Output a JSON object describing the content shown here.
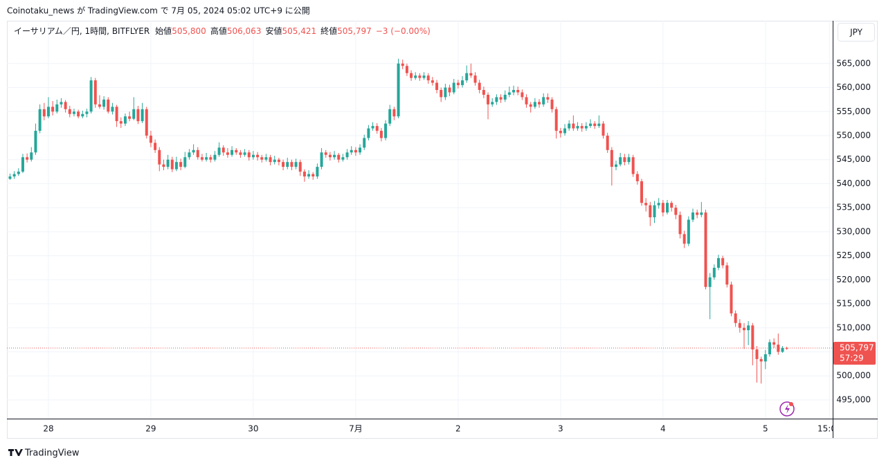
{
  "title": "Coinotaku_news が TradingView.com で 7月 05, 2024 05:02 UTC+9 に公開",
  "legend": {
    "symbol": "イーサリアム／円, 1時間, BITFLYER",
    "open_name": "始値",
    "open": "505,800",
    "high_name": "高値",
    "high": "506,063",
    "low_name": "安値",
    "low": "505,421",
    "close_name": "終値",
    "close": "505,797",
    "change": "−3 (−0.00%)"
  },
  "currency": "JPY",
  "price_label": "505,797",
  "countdown": "57:29",
  "footer": "TradingView",
  "chart_data": {
    "type": "candlestick",
    "up_color": "#26a69a",
    "down_color": "#ef5350",
    "grid": true,
    "xlim": [
      -0.4,
      192.6
    ],
    "ylim": [
      491100,
      573900
    ],
    "xticks": [
      {
        "value": 9,
        "label": "28"
      },
      {
        "value": 33,
        "label": "29"
      },
      {
        "value": 57,
        "label": "30"
      },
      {
        "value": 81,
        "label": "7月"
      },
      {
        "value": 105,
        "label": "2"
      },
      {
        "value": 129,
        "label": "3"
      },
      {
        "value": 153,
        "label": "4"
      },
      {
        "value": 177,
        "label": "5"
      },
      {
        "value": 192,
        "label": "15:00"
      }
    ],
    "yticks": [
      {
        "value": 495000,
        "label": "495,000"
      },
      {
        "value": 500000,
        "label": "500,000"
      },
      {
        "value": 505000,
        "label": "505,000"
      },
      {
        "value": 510000,
        "label": "510,000"
      },
      {
        "value": 515000,
        "label": "515,000"
      },
      {
        "value": 520000,
        "label": "520,000"
      },
      {
        "value": 525000,
        "label": "525,000"
      },
      {
        "value": 530000,
        "label": "530,000"
      },
      {
        "value": 535000,
        "label": "535,000"
      },
      {
        "value": 540000,
        "label": "540,000"
      },
      {
        "value": 545000,
        "label": "545,000"
      },
      {
        "value": 550000,
        "label": "550,000"
      },
      {
        "value": 555000,
        "label": "555,000"
      },
      {
        "value": 560000,
        "label": "560,000"
      },
      {
        "value": 565000,
        "label": "565,000"
      }
    ],
    "x": [
      0,
      1,
      2,
      3,
      4,
      5,
      6,
      7,
      8,
      9,
      10,
      11,
      12,
      13,
      14,
      15,
      16,
      17,
      18,
      19,
      20,
      21,
      22,
      23,
      24,
      25,
      26,
      27,
      28,
      29,
      30,
      31,
      32,
      33,
      34,
      35,
      36,
      37,
      38,
      39,
      40,
      41,
      42,
      43,
      44,
      45,
      46,
      47,
      48,
      49,
      50,
      51,
      52,
      53,
      54,
      55,
      56,
      57,
      58,
      59,
      60,
      61,
      62,
      63,
      64,
      65,
      66,
      67,
      68,
      69,
      70,
      71,
      72,
      73,
      74,
      75,
      76,
      77,
      78,
      79,
      80,
      81,
      82,
      83,
      84,
      85,
      86,
      87,
      88,
      89,
      90,
      91,
      92,
      93,
      94,
      95,
      96,
      97,
      98,
      99,
      100,
      101,
      102,
      103,
      104,
      105,
      106,
      107,
      108,
      109,
      110,
      111,
      112,
      113,
      114,
      115,
      116,
      117,
      118,
      119,
      120,
      121,
      122,
      123,
      124,
      125,
      126,
      127,
      128,
      129,
      130,
      131,
      132,
      133,
      134,
      135,
      136,
      137,
      138,
      139,
      140,
      141,
      142,
      143,
      144,
      145,
      146,
      147,
      148,
      149,
      150,
      151,
      152,
      153,
      154,
      155,
      156,
      157,
      158,
      159,
      160,
      161,
      162,
      163,
      164,
      165,
      166,
      167,
      168,
      169,
      170,
      171,
      172,
      173,
      174,
      175,
      176,
      177,
      178,
      179,
      180,
      181,
      182
    ],
    "ohlc": [
      [
        541000,
        542100,
        540800,
        541500
      ],
      [
        541500,
        542600,
        541000,
        542000
      ],
      [
        542000,
        543200,
        541600,
        542500
      ],
      [
        542500,
        546200,
        542200,
        545500
      ],
      [
        545500,
        546300,
        544400,
        545000
      ],
      [
        545000,
        547600,
        544600,
        546500
      ],
      [
        546500,
        552500,
        546000,
        551000
      ],
      [
        551000,
        556500,
        550500,
        555500
      ],
      [
        555500,
        556800,
        553200,
        554000
      ],
      [
        554000,
        558000,
        553600,
        556000
      ],
      [
        556000,
        557200,
        554200,
        555000
      ],
      [
        555000,
        557500,
        554600,
        556500
      ],
      [
        556500,
        557800,
        555800,
        557000
      ],
      [
        557000,
        557400,
        554800,
        555500
      ],
      [
        555500,
        556200,
        553800,
        554500
      ],
      [
        554500,
        555600,
        554000,
        555000
      ],
      [
        555000,
        555400,
        553600,
        554000
      ],
      [
        554000,
        555200,
        553600,
        554500
      ],
      [
        554500,
        555600,
        553800,
        555000
      ],
      [
        555000,
        562200,
        554600,
        561500
      ],
      [
        561500,
        562000,
        555800,
        556500
      ],
      [
        556500,
        558400,
        555600,
        556000
      ],
      [
        556000,
        558200,
        555400,
        557500
      ],
      [
        557500,
        558000,
        554600,
        555000
      ],
      [
        555000,
        556800,
        554400,
        556000
      ],
      [
        556000,
        556400,
        551800,
        553000
      ],
      [
        553000,
        553800,
        551600,
        552500
      ],
      [
        552500,
        554600,
        552000,
        554000
      ],
      [
        554000,
        555000,
        553000,
        553500
      ],
      [
        553500,
        558000,
        553200,
        555500
      ],
      [
        555500,
        556200,
        552400,
        553000
      ],
      [
        553000,
        556800,
        552600,
        555500
      ],
      [
        555500,
        556000,
        549400,
        550000
      ],
      [
        550000,
        551000,
        547600,
        548500
      ],
      [
        548500,
        549200,
        546400,
        547000
      ],
      [
        547000,
        547600,
        542600,
        544000
      ],
      [
        544000,
        545000,
        542800,
        543500
      ],
      [
        543500,
        546000,
        543000,
        545000
      ],
      [
        545000,
        545600,
        542400,
        543000
      ],
      [
        543000,
        545600,
        542600,
        544500
      ],
      [
        544500,
        545200,
        542800,
        543500
      ],
      [
        543500,
        546600,
        543200,
        545500
      ],
      [
        545500,
        547200,
        545000,
        546500
      ],
      [
        546500,
        548200,
        546000,
        547000
      ],
      [
        547000,
        547600,
        545000,
        545500
      ],
      [
        545500,
        546200,
        544600,
        545000
      ],
      [
        545000,
        546400,
        544600,
        545500
      ],
      [
        545500,
        546000,
        544400,
        545000
      ],
      [
        545000,
        546800,
        544600,
        546000
      ],
      [
        546000,
        548600,
        545600,
        547500
      ],
      [
        547500,
        548000,
        545800,
        546500
      ],
      [
        546500,
        547400,
        545400,
        546000
      ],
      [
        546000,
        547800,
        545600,
        547000
      ],
      [
        547000,
        547400,
        546000,
        546500
      ],
      [
        546500,
        547000,
        545400,
        546000
      ],
      [
        546000,
        547200,
        545600,
        546500
      ],
      [
        546500,
        547000,
        544800,
        545500
      ],
      [
        545500,
        546800,
        545000,
        546000
      ],
      [
        546000,
        546600,
        544800,
        545500
      ],
      [
        545500,
        546000,
        544400,
        545000
      ],
      [
        545000,
        546200,
        544600,
        545500
      ],
      [
        545500,
        546000,
        543800,
        544500
      ],
      [
        544500,
        545800,
        544000,
        545000
      ],
      [
        545000,
        545400,
        543800,
        544500
      ],
      [
        544500,
        545000,
        542800,
        543500
      ],
      [
        543500,
        545400,
        543000,
        544500
      ],
      [
        544500,
        545000,
        542800,
        543500
      ],
      [
        543500,
        545200,
        543000,
        544500
      ],
      [
        544500,
        545000,
        541600,
        542500
      ],
      [
        542500,
        543000,
        540400,
        541500
      ],
      [
        541500,
        542800,
        541000,
        542000
      ],
      [
        542000,
        542400,
        540800,
        541500
      ],
      [
        541500,
        544200,
        541000,
        543500
      ],
      [
        543500,
        547400,
        543000,
        546500
      ],
      [
        546500,
        547000,
        545400,
        546000
      ],
      [
        546000,
        546600,
        544800,
        545500
      ],
      [
        545500,
        546800,
        545000,
        546000
      ],
      [
        546000,
        546400,
        544400,
        545000
      ],
      [
        545000,
        546200,
        544600,
        545500
      ],
      [
        545500,
        547200,
        545000,
        546500
      ],
      [
        546500,
        547800,
        546000,
        547000
      ],
      [
        547000,
        547600,
        545800,
        546500
      ],
      [
        546500,
        548200,
        546000,
        547500
      ],
      [
        547500,
        550200,
        547000,
        549500
      ],
      [
        549500,
        552200,
        549000,
        551500
      ],
      [
        551500,
        552800,
        551000,
        552000
      ],
      [
        552000,
        552600,
        550400,
        551000
      ],
      [
        551000,
        551600,
        548800,
        549500
      ],
      [
        549500,
        553200,
        549000,
        552500
      ],
      [
        552500,
        556400,
        552000,
        555500
      ],
      [
        555500,
        556000,
        553200,
        554000
      ],
      [
        554000,
        566000,
        553600,
        565000
      ],
      [
        565000,
        565800,
        563800,
        564500
      ],
      [
        564500,
        565000,
        562400,
        563000
      ],
      [
        563000,
        563600,
        561400,
        562000
      ],
      [
        562000,
        563200,
        561600,
        562500
      ],
      [
        562500,
        563000,
        561400,
        562000
      ],
      [
        562000,
        563200,
        561600,
        562500
      ],
      [
        562500,
        563000,
        560800,
        561500
      ],
      [
        561500,
        562200,
        560400,
        561000
      ],
      [
        561000,
        561600,
        558800,
        559500
      ],
      [
        559500,
        560000,
        557000,
        558000
      ],
      [
        558000,
        560800,
        557400,
        560000
      ],
      [
        560000,
        560600,
        558200,
        559000
      ],
      [
        559000,
        561800,
        558600,
        561000
      ],
      [
        561000,
        561600,
        559800,
        560500
      ],
      [
        560500,
        562400,
        560000,
        561500
      ],
      [
        561500,
        564600,
        561000,
        563000
      ],
      [
        563000,
        565000,
        562000,
        562500
      ],
      [
        562500,
        563200,
        560400,
        561000
      ],
      [
        561000,
        561600,
        558800,
        559500
      ],
      [
        559500,
        560200,
        557800,
        558500
      ],
      [
        558500,
        559000,
        553400,
        556500
      ],
      [
        556500,
        557800,
        556000,
        557000
      ],
      [
        557000,
        558600,
        556400,
        558000
      ],
      [
        558000,
        558600,
        556800,
        557500
      ],
      [
        557500,
        559400,
        557000,
        558500
      ],
      [
        558500,
        560200,
        558000,
        559000
      ],
      [
        559000,
        560400,
        558400,
        559500
      ],
      [
        559500,
        560200,
        558400,
        559000
      ],
      [
        559000,
        559600,
        557400,
        558000
      ],
      [
        558000,
        558600,
        555800,
        556500
      ],
      [
        556500,
        557000,
        554800,
        556000
      ],
      [
        556000,
        557800,
        555600,
        557000
      ],
      [
        557000,
        557600,
        555800,
        556500
      ],
      [
        556500,
        558800,
        556000,
        558000
      ],
      [
        558000,
        558800,
        556800,
        557500
      ],
      [
        557500,
        558000,
        554800,
        555500
      ],
      [
        555500,
        556000,
        549400,
        551000
      ],
      [
        551000,
        551600,
        549600,
        550500
      ],
      [
        550500,
        552400,
        550000,
        551500
      ],
      [
        551500,
        553200,
        551000,
        552500
      ],
      [
        552500,
        554200,
        551000,
        551500
      ],
      [
        551500,
        552800,
        551000,
        552000
      ],
      [
        552000,
        552600,
        550800,
        551500
      ],
      [
        551500,
        552800,
        551000,
        552000
      ],
      [
        552000,
        553400,
        551600,
        552500
      ],
      [
        552500,
        553000,
        551400,
        552000
      ],
      [
        552000,
        554200,
        551600,
        552500
      ],
      [
        552500,
        553000,
        549400,
        550000
      ],
      [
        550000,
        550600,
        546400,
        547000
      ],
      [
        547000,
        547600,
        539600,
        543500
      ],
      [
        543500,
        544800,
        542800,
        544000
      ],
      [
        544000,
        546400,
        543600,
        545500
      ],
      [
        545500,
        546200,
        543800,
        544500
      ],
      [
        544500,
        546200,
        544000,
        545500
      ],
      [
        545500,
        546000,
        541400,
        542000
      ],
      [
        542000,
        542600,
        539800,
        540500
      ],
      [
        540500,
        541000,
        535400,
        536000
      ],
      [
        536000,
        537000,
        534200,
        535500
      ],
      [
        535500,
        536200,
        531200,
        533000
      ],
      [
        533000,
        536400,
        531800,
        535500
      ],
      [
        535500,
        537000,
        534800,
        536000
      ],
      [
        536000,
        536600,
        533200,
        534000
      ],
      [
        534000,
        536600,
        533600,
        536000
      ],
      [
        536000,
        536400,
        534200,
        535000
      ],
      [
        535000,
        535600,
        532600,
        533500
      ],
      [
        533500,
        534200,
        528600,
        529500
      ],
      [
        529500,
        530200,
        526600,
        527500
      ],
      [
        527500,
        533200,
        527000,
        532500
      ],
      [
        532500,
        534800,
        532000,
        534000
      ],
      [
        534000,
        534600,
        532800,
        533500
      ],
      [
        533500,
        536200,
        533000,
        534000
      ],
      [
        534000,
        534600,
        518000,
        518500
      ],
      [
        518500,
        521400,
        511800,
        520500
      ],
      [
        520500,
        523200,
        520000,
        522500
      ],
      [
        522500,
        525200,
        522000,
        524500
      ],
      [
        524500,
        525000,
        522400,
        523000
      ],
      [
        523000,
        523600,
        518400,
        519000
      ],
      [
        519000,
        519600,
        512400,
        513000
      ],
      [
        513000,
        513600,
        510200,
        511000
      ],
      [
        511000,
        511800,
        509000,
        510000
      ],
      [
        510000,
        511000,
        505600,
        509500
      ],
      [
        509500,
        511400,
        506400,
        510500
      ],
      [
        510500,
        511000,
        502200,
        505500
      ],
      [
        505500,
        506200,
        498600,
        503500
      ],
      [
        503500,
        504000,
        498400,
        503000
      ],
      [
        503000,
        505400,
        501400,
        504500
      ],
      [
        504500,
        507600,
        504000,
        507000
      ],
      [
        507000,
        507800,
        505800,
        506500
      ],
      [
        506500,
        508800,
        504400,
        505000
      ],
      [
        505000,
        506200,
        504800,
        505800
      ],
      [
        505800,
        506063,
        505421,
        505797
      ]
    ]
  }
}
